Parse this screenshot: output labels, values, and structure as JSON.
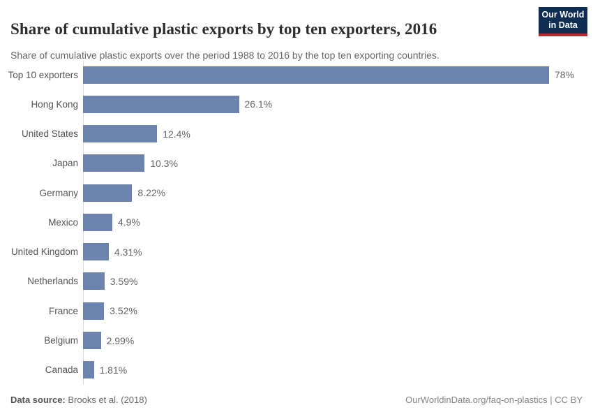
{
  "header": {
    "title": "Share of cumulative plastic exports by top ten exporters, 2016",
    "subtitle": "Share of cumulative plastic exports over the period 1988 to 2016 by the top ten exporting countries.",
    "logo": {
      "line1": "Our World",
      "line2": "in Data"
    }
  },
  "chart_data": {
    "type": "bar",
    "orientation": "horizontal",
    "title": "Share of cumulative plastic exports by top ten exporters, 2016",
    "categories": [
      "Top 10 exporters",
      "Hong Kong",
      "United States",
      "Japan",
      "Germany",
      "Mexico",
      "United Kingdom",
      "Netherlands",
      "France",
      "Belgium",
      "Canada"
    ],
    "values": [
      78,
      26.1,
      12.4,
      10.3,
      8.22,
      4.9,
      4.31,
      3.59,
      3.52,
      2.99,
      1.81
    ],
    "value_labels": [
      "78%",
      "26.1%",
      "12.4%",
      "10.3%",
      "8.22%",
      "4.9%",
      "4.31%",
      "3.59%",
      "3.52%",
      "2.99%",
      "1.81%"
    ],
    "xlabel": "",
    "ylabel": "",
    "xlim": [
      0,
      78
    ],
    "grid": false,
    "legend": false,
    "bar_color": "#6c84ad"
  },
  "footer": {
    "datasource_label": "Data source:",
    "datasource_value": "Brooks et al. (2018)",
    "right_text": "OurWorldinData.org/faq-on-plastics | CC BY"
  },
  "colors": {
    "bar": "#6c84ad",
    "axis": "#dcdcdc",
    "logo_navy": "#0f2e52",
    "logo_red": "#b9282d",
    "title_text": "#2d2d2d",
    "muted_text": "#666666"
  }
}
